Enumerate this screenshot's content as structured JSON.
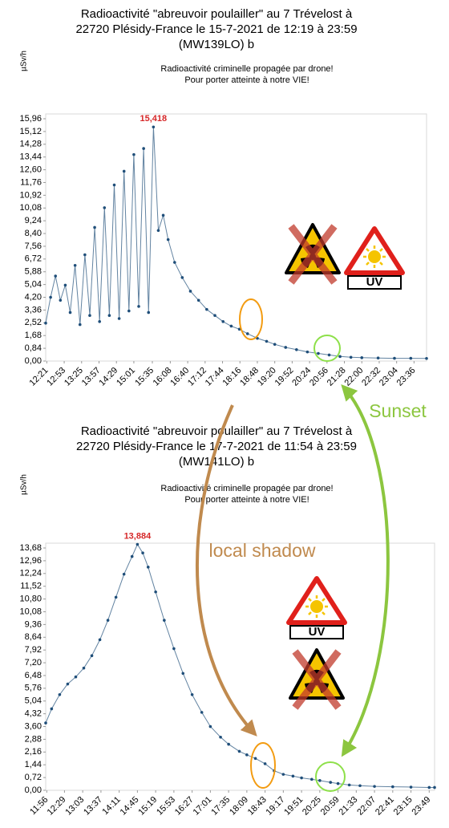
{
  "chart_data": [
    {
      "type": "line",
      "title": [
        "Radioactivité \"abreuvoir poulailler\" au 7 Trévelost à",
        "22720 Plésidy-France le 15-7-2021 de 12:19 à 23:59",
        "(MW139LO) b"
      ],
      "subtitle": [
        "Radioactivité criminelle propagée par drone!",
        "Pour porter atteinte à notre VIE!"
      ],
      "y_label": "µSv/h",
      "color": "#1f4e79",
      "x": [
        "12:19",
        "12:28",
        "12:37",
        "12:46",
        "12:55",
        "13:04",
        "13:13",
        "13:22",
        "13:31",
        "13:40",
        "13:49",
        "13:58",
        "14:07",
        "14:16",
        "14:25",
        "14:34",
        "14:43",
        "14:52",
        "15:01",
        "15:10",
        "15:19",
        "15:28",
        "15:37",
        "15:46",
        "15:55",
        "16:04",
        "16:16",
        "16:30",
        "16:45",
        "17:00",
        "17:15",
        "17:30",
        "17:45",
        "18:00",
        "18:15",
        "18:30",
        "18:48",
        "19:05",
        "19:20",
        "19:40",
        "20:00",
        "20:20",
        "20:40",
        "21:00",
        "21:20",
        "21:40",
        "22:00",
        "22:30",
        "23:00",
        "23:30",
        "23:59"
      ],
      "values": [
        2.5,
        4.2,
        5.6,
        4.0,
        5.0,
        3.2,
        6.3,
        2.4,
        7.0,
        3.0,
        8.8,
        2.6,
        10.1,
        3.0,
        11.6,
        2.8,
        12.5,
        3.3,
        13.6,
        3.6,
        14.0,
        3.2,
        15.418,
        8.6,
        9.6,
        8.0,
        6.5,
        5.5,
        4.6,
        4.0,
        3.4,
        3.0,
        2.6,
        2.3,
        2.1,
        1.8,
        1.5,
        1.3,
        1.1,
        0.9,
        0.75,
        0.6,
        0.5,
        0.4,
        0.3,
        0.25,
        0.22,
        0.2,
        0.18,
        0.18,
        0.17
      ],
      "annotation": {
        "x": "15:37",
        "value": 15.418,
        "label": "15,418"
      },
      "xlim": [
        "12:19",
        "23:59"
      ],
      "xticks": [
        "12:21",
        "12:53",
        "13:25",
        "13:57",
        "14:29",
        "15:01",
        "15:35",
        "16:08",
        "16:40",
        "17:12",
        "17:44",
        "18:16",
        "18:48",
        "19:20",
        "19:52",
        "20:24",
        "20:56",
        "21:28",
        "22:00",
        "22:32",
        "23:04",
        "23:36"
      ],
      "ylim": [
        0,
        15.96
      ],
      "yticks": [
        {
          "value": 0,
          "label": "0,00"
        },
        {
          "value": 0.84,
          "label": "0,84"
        },
        {
          "value": 1.68,
          "label": "1,68"
        },
        {
          "value": 2.52,
          "label": "2,52"
        },
        {
          "value": 3.36,
          "label": "3,36"
        },
        {
          "value": 4.2,
          "label": "4,20"
        },
        {
          "value": 5.04,
          "label": "5,04"
        },
        {
          "value": 5.88,
          "label": "5,88"
        },
        {
          "value": 6.72,
          "label": "6,72"
        },
        {
          "value": 7.56,
          "label": "7,56"
        },
        {
          "value": 8.4,
          "label": "8,40"
        },
        {
          "value": 9.24,
          "label": "9,24"
        },
        {
          "value": 10.08,
          "label": "10,08"
        },
        {
          "value": 10.92,
          "label": "10,92"
        },
        {
          "value": 11.76,
          "label": "11,76"
        },
        {
          "value": 12.6,
          "label": "12,60"
        },
        {
          "value": 13.44,
          "label": "13,44"
        },
        {
          "value": 14.28,
          "label": "14,28"
        },
        {
          "value": 15.12,
          "label": "15,12"
        },
        {
          "value": 15.96,
          "label": "15,96"
        }
      ]
    },
    {
      "type": "line",
      "title": [
        "Radioactivité \"abreuvoir poulailler\" au 7 Trévelost à",
        "22720 Plésidy-France le 17-7-2021 de 11:54 à 23:59",
        "(MW141LO) b"
      ],
      "subtitle": [
        "Radioactivité criminelle propagée par drone!",
        "Pour porter atteinte à notre VIE!"
      ],
      "y_label": "µSv/h",
      "color": "#1f4e79",
      "x": [
        "11:54",
        "12:05",
        "12:20",
        "12:35",
        "12:50",
        "13:05",
        "13:20",
        "13:35",
        "13:50",
        "14:05",
        "14:20",
        "14:35",
        "14:45",
        "14:55",
        "15:05",
        "15:19",
        "15:35",
        "15:53",
        "16:10",
        "16:27",
        "16:45",
        "17:01",
        "17:20",
        "17:35",
        "17:55",
        "18:09",
        "18:25",
        "18:43",
        "19:00",
        "19:17",
        "19:35",
        "19:51",
        "20:10",
        "20:25",
        "20:45",
        "20:59",
        "21:20",
        "21:40",
        "22:07",
        "22:41",
        "23:15",
        "23:49",
        "23:59"
      ],
      "values": [
        3.8,
        4.6,
        5.4,
        6.0,
        6.4,
        6.9,
        7.6,
        8.5,
        9.6,
        10.9,
        12.2,
        13.2,
        13.884,
        13.4,
        12.6,
        11.2,
        9.6,
        8.0,
        6.6,
        5.4,
        4.4,
        3.6,
        3.0,
        2.6,
        2.2,
        2.0,
        1.8,
        1.5,
        1.1,
        0.9,
        0.8,
        0.7,
        0.62,
        0.55,
        0.45,
        0.38,
        0.3,
        0.26,
        0.22,
        0.2,
        0.18,
        0.16,
        0.16
      ],
      "annotation": {
        "x": "14:45",
        "value": 13.884,
        "label": "13,884"
      },
      "xlim": [
        "11:54",
        "23:59"
      ],
      "xticks": [
        "11:56",
        "12:29",
        "13:03",
        "13:37",
        "14:11",
        "14:45",
        "15:19",
        "15:53",
        "16:27",
        "17:01",
        "17:35",
        "18:09",
        "18:43",
        "19:17",
        "19:51",
        "20:25",
        "20:59",
        "21:33",
        "22:07",
        "22:41",
        "23:15",
        "23:49"
      ],
      "ylim": [
        0,
        13.68
      ],
      "yticks": [
        {
          "value": 0,
          "label": "0,00"
        },
        {
          "value": 0.72,
          "label": "0,72"
        },
        {
          "value": 1.44,
          "label": "1,44"
        },
        {
          "value": 2.16,
          "label": "2,16"
        },
        {
          "value": 2.88,
          "label": "2,88"
        },
        {
          "value": 3.6,
          "label": "3,60"
        },
        {
          "value": 4.32,
          "label": "4,32"
        },
        {
          "value": 5.04,
          "label": "5,04"
        },
        {
          "value": 5.76,
          "label": "5,76"
        },
        {
          "value": 6.48,
          "label": "6,48"
        },
        {
          "value": 7.2,
          "label": "7,20"
        },
        {
          "value": 7.92,
          "label": "7,92"
        },
        {
          "value": 8.64,
          "label": "8,64"
        },
        {
          "value": 9.36,
          "label": "9,36"
        },
        {
          "value": 10.08,
          "label": "10,08"
        },
        {
          "value": 10.8,
          "label": "10,80"
        },
        {
          "value": 11.52,
          "label": "11,52"
        },
        {
          "value": 12.24,
          "label": "12,24"
        },
        {
          "value": 12.96,
          "label": "12,96"
        },
        {
          "value": 13.68,
          "label": "13,68"
        }
      ]
    }
  ],
  "overlay": {
    "sunset": "Sunset",
    "local_shadow": "local shadow",
    "uv": "UV"
  }
}
